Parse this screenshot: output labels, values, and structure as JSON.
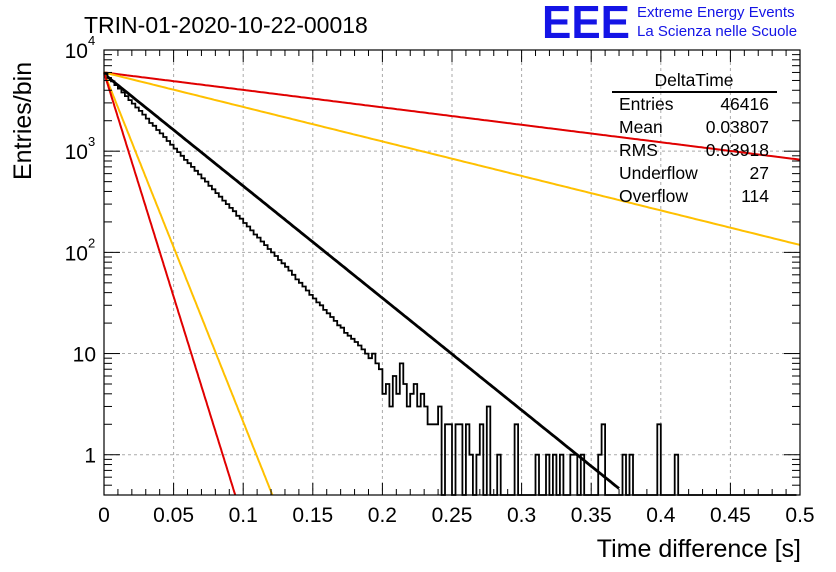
{
  "header": {
    "run_title": "TRIN-01-2020-10-22-00018",
    "brand_logo": "EEE",
    "brand_line1": "Extreme Energy Events",
    "brand_line2": "La Scienza nelle Scuole"
  },
  "colors": {
    "histogram": "#000000",
    "fit": "#000000",
    "red": "#e00000",
    "yellow": "#ffc000",
    "grid": "#aaaaaa",
    "brand": "#1414e6"
  },
  "stats_box": {
    "title": "DeltaTime",
    "rows": [
      {
        "label": "Entries",
        "value": "46416"
      },
      {
        "label": "Mean",
        "value": "0.03807"
      },
      {
        "label": "RMS",
        "value": "0.03918"
      },
      {
        "label": "Underflow",
        "value": "27"
      },
      {
        "label": "Overflow",
        "value": "114"
      }
    ]
  },
  "chart_data": {
    "type": "line",
    "xlabel": "Time difference [s]",
    "ylabel": "Entries/bin",
    "xlim": [
      0,
      0.5
    ],
    "ylim": [
      0.4,
      10000
    ],
    "y_scale": "log",
    "grid": true,
    "x_ticks": [
      "0",
      "0.05",
      "0.1",
      "0.15",
      "0.2",
      "0.25",
      "0.3",
      "0.35",
      "0.4",
      "0.45",
      "0.5"
    ],
    "y_ticks": [
      {
        "value": 1,
        "base": "1",
        "exp": ""
      },
      {
        "value": 10,
        "base": "10",
        "exp": ""
      },
      {
        "value": 100,
        "base": "10",
        "exp": "2"
      },
      {
        "value": 1000,
        "base": "10",
        "exp": "3"
      },
      {
        "value": 10000,
        "base": "10",
        "exp": "4"
      }
    ],
    "histogram": {
      "bin_width": 0.0025,
      "counts": [
        5800,
        5300,
        4900,
        4500,
        4150,
        3800,
        3500,
        3200,
        2950,
        2700,
        2500,
        2300,
        2100,
        1900,
        1780,
        1620,
        1500,
        1380,
        1260,
        1160,
        1060,
        980,
        900,
        820,
        760,
        700,
        640,
        590,
        540,
        500,
        455,
        420,
        385,
        355,
        325,
        300,
        275,
        255,
        230,
        215,
        195,
        180,
        165,
        150,
        140,
        128,
        118,
        108,
        100,
        92,
        84,
        78,
        72,
        66,
        60,
        54,
        50,
        46,
        42,
        38,
        35,
        32,
        30,
        27,
        25,
        23,
        21,
        19,
        18,
        16,
        15,
        14,
        13,
        12,
        11,
        10,
        9,
        10,
        8,
        7,
        4,
        5,
        3,
        6,
        4,
        8,
        5,
        3,
        4,
        5,
        3,
        4,
        3,
        2,
        2,
        2,
        3,
        0,
        2,
        2,
        0,
        2,
        2,
        0,
        2,
        1,
        0,
        1,
        2,
        0,
        3,
        0,
        0,
        1,
        0,
        0,
        0,
        0,
        2,
        0,
        0,
        0,
        0,
        0,
        1,
        0,
        0,
        1,
        0,
        1,
        0,
        1,
        0,
        0,
        1,
        1,
        0,
        1,
        0,
        0,
        0,
        0,
        1,
        2,
        0,
        0,
        0,
        0,
        0,
        1,
        0,
        1,
        0,
        0,
        0,
        0,
        0,
        0,
        0,
        2,
        0,
        0,
        0,
        0,
        1,
        0,
        0,
        0,
        0,
        0,
        0,
        0,
        0,
        0,
        0,
        0,
        0,
        0,
        0,
        0,
        0,
        0,
        0,
        0,
        0,
        0,
        0,
        0,
        0,
        0,
        0,
        0,
        0,
        0,
        0,
        0,
        0,
        0,
        0
      ]
    },
    "series": [
      {
        "style": "black-fit",
        "color": "#000000",
        "amplitude": 5800,
        "decay_constant": 25.5,
        "x_range": [
          0,
          0.37
        ]
      },
      {
        "style": "red-slow",
        "color": "#e00000",
        "amplitude": 6000,
        "decay_constant": 3.97,
        "x_range": [
          0,
          0.5
        ]
      },
      {
        "style": "yellow-slow",
        "color": "#ffc000",
        "amplitude": 6000,
        "decay_constant": 7.85,
        "x_range": [
          0,
          0.5
        ]
      },
      {
        "style": "yellow-fast",
        "color": "#ffc000",
        "amplitude": 6000,
        "decay_constant": 79.5,
        "x_range": [
          0,
          0.125
        ]
      },
      {
        "style": "red-fast",
        "color": "#e00000",
        "amplitude": 6000,
        "decay_constant": 102,
        "x_range": [
          0,
          0.1
        ]
      }
    ]
  }
}
